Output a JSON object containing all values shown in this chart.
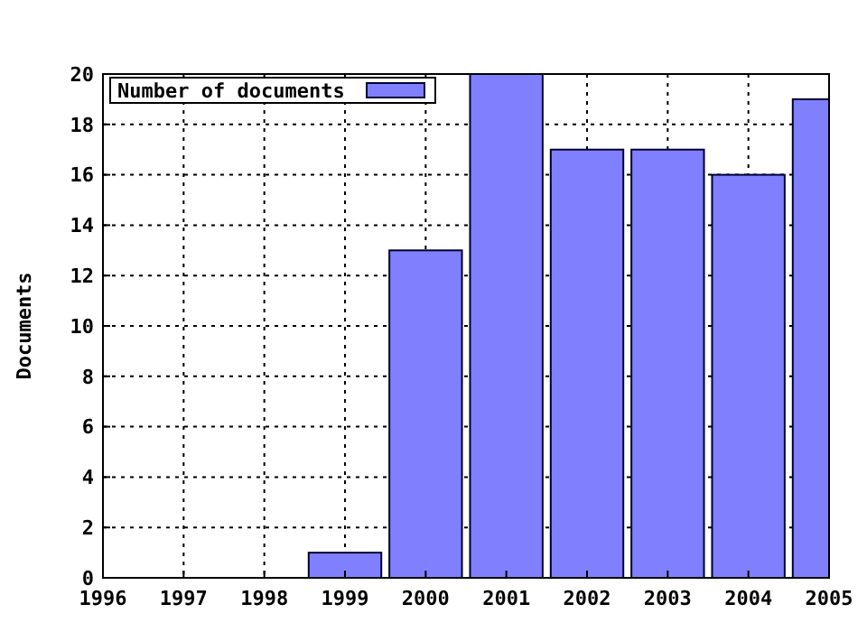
{
  "chart_data": {
    "type": "bar",
    "ylabel": "Documents",
    "x": [
      1999,
      2000,
      2001,
      2002,
      2003,
      2004,
      2005
    ],
    "series": [
      {
        "name": "Number of documents",
        "color": "#8080ff",
        "values": [
          1,
          13,
          20,
          17,
          17,
          16,
          19
        ]
      }
    ],
    "xlim": [
      1996,
      2005
    ],
    "xticks": [
      1996,
      1997,
      1998,
      1999,
      2000,
      2001,
      2002,
      2003,
      2004,
      2005
    ],
    "ylim": [
      0,
      20
    ],
    "yticks": [
      0,
      2,
      4,
      6,
      8,
      10,
      12,
      14,
      16,
      18,
      20
    ],
    "grid": true,
    "legend": "top left"
  }
}
